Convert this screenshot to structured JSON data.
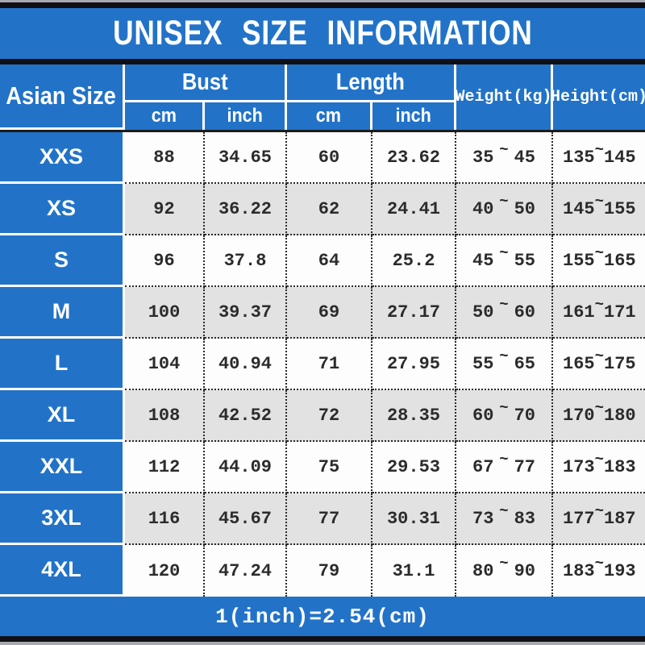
{
  "title": "UNISEX SIZE INFORMATION",
  "colors": {
    "blue": "#2273c8",
    "row_white": "#fdfdfd",
    "row_alt": "#e2e2e2",
    "bar_black": "#101014",
    "bar_gray": "#a8a8b0",
    "dot": "#2a2a2a",
    "num": "#2b2b2b"
  },
  "header": {
    "size_col": "Asian Size",
    "groups": [
      {
        "label": "Bust",
        "sub": [
          "cm",
          "inch"
        ]
      },
      {
        "label": "Length",
        "sub": [
          "cm",
          "inch"
        ]
      }
    ],
    "weight": "Weight(kg)",
    "height": "Height(cm)"
  },
  "footer": {
    "note": "1(inch)=2.54(cm)"
  },
  "chart_data": {
    "type": "table",
    "title": "UNISEX SIZE INFORMATION",
    "columns": [
      "Asian Size",
      "Bust cm",
      "Bust inch",
      "Length cm",
      "Length inch",
      "Weight(kg)",
      "Height(cm)"
    ],
    "rows": [
      [
        "XXS",
        "88",
        "34.65",
        "60",
        "23.62",
        "35 ~ 45",
        "135 ~ 145"
      ],
      [
        "XS",
        "92",
        "36.22",
        "62",
        "24.41",
        "40 ~ 50",
        "145 ~ 155"
      ],
      [
        "S",
        "96",
        "37.8",
        "64",
        "25.2",
        "45 ~ 55",
        "155 ~ 165"
      ],
      [
        "M",
        "100",
        "39.37",
        "69",
        "27.17",
        "50 ~ 60",
        "161 ~ 171"
      ],
      [
        "L",
        "104",
        "40.94",
        "71",
        "27.95",
        "55 ~ 65",
        "165 ~ 175"
      ],
      [
        "XL",
        "108",
        "42.52",
        "72",
        "28.35",
        "60 ~ 70",
        "170 ~ 180"
      ],
      [
        "XXL",
        "112",
        "44.09",
        "75",
        "29.53",
        "67 ~ 77",
        "173 ~ 183"
      ],
      [
        "3XL",
        "116",
        "45.67",
        "77",
        "30.31",
        "73 ~ 83",
        "177 ~ 187"
      ],
      [
        "4XL",
        "120",
        "47.24",
        "79",
        "31.1",
        "80 ~ 90",
        "183 ~ 193"
      ]
    ],
    "note": "1(inch)=2.54(cm)"
  }
}
